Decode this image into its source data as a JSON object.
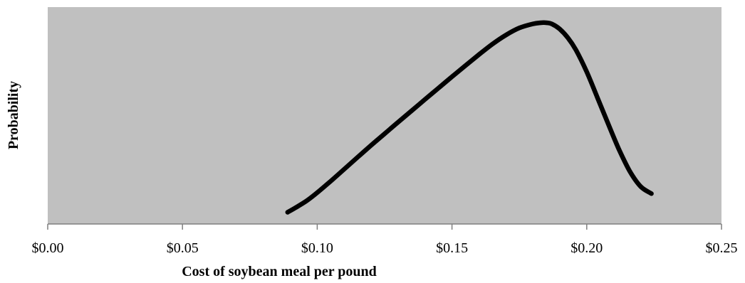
{
  "chart_data": {
    "type": "line",
    "title": "",
    "xlabel": "Cost of soybean meal per pound",
    "ylabel": "Probability",
    "xlim": [
      0,
      0.25
    ],
    "x_ticks": [
      0,
      0.05,
      0.1,
      0.15,
      0.2,
      0.25
    ],
    "x_tick_labels": [
      "$0.00",
      "$0.05",
      "$0.10",
      "$0.15",
      "$0.20",
      "$0.25"
    ],
    "y_ticks_shown": false,
    "grid": false,
    "legend": "none",
    "colors": {
      "plot_background": "#c0c0c0",
      "line": "#000000",
      "axis": "#7f7f7f"
    },
    "series": [
      {
        "x": [
          0.089,
          0.092,
          0.096,
          0.1,
          0.105,
          0.11,
          0.115,
          0.12,
          0.125,
          0.13,
          0.135,
          0.14,
          0.145,
          0.15,
          0.155,
          0.16,
          0.165,
          0.17,
          0.175,
          0.18,
          0.183,
          0.185,
          0.187,
          0.19,
          0.193,
          0.196,
          0.2,
          0.204,
          0.208,
          0.212,
          0.216,
          0.22,
          0.224
        ],
        "y": [
          0.013,
          0.037,
          0.072,
          0.115,
          0.175,
          0.237,
          0.3,
          0.362,
          0.422,
          0.482,
          0.541,
          0.601,
          0.66,
          0.719,
          0.777,
          0.834,
          0.889,
          0.936,
          0.973,
          0.994,
          1.0,
          1.0,
          0.994,
          0.967,
          0.922,
          0.858,
          0.744,
          0.609,
          0.472,
          0.339,
          0.226,
          0.147,
          0.11
        ]
      }
    ]
  }
}
